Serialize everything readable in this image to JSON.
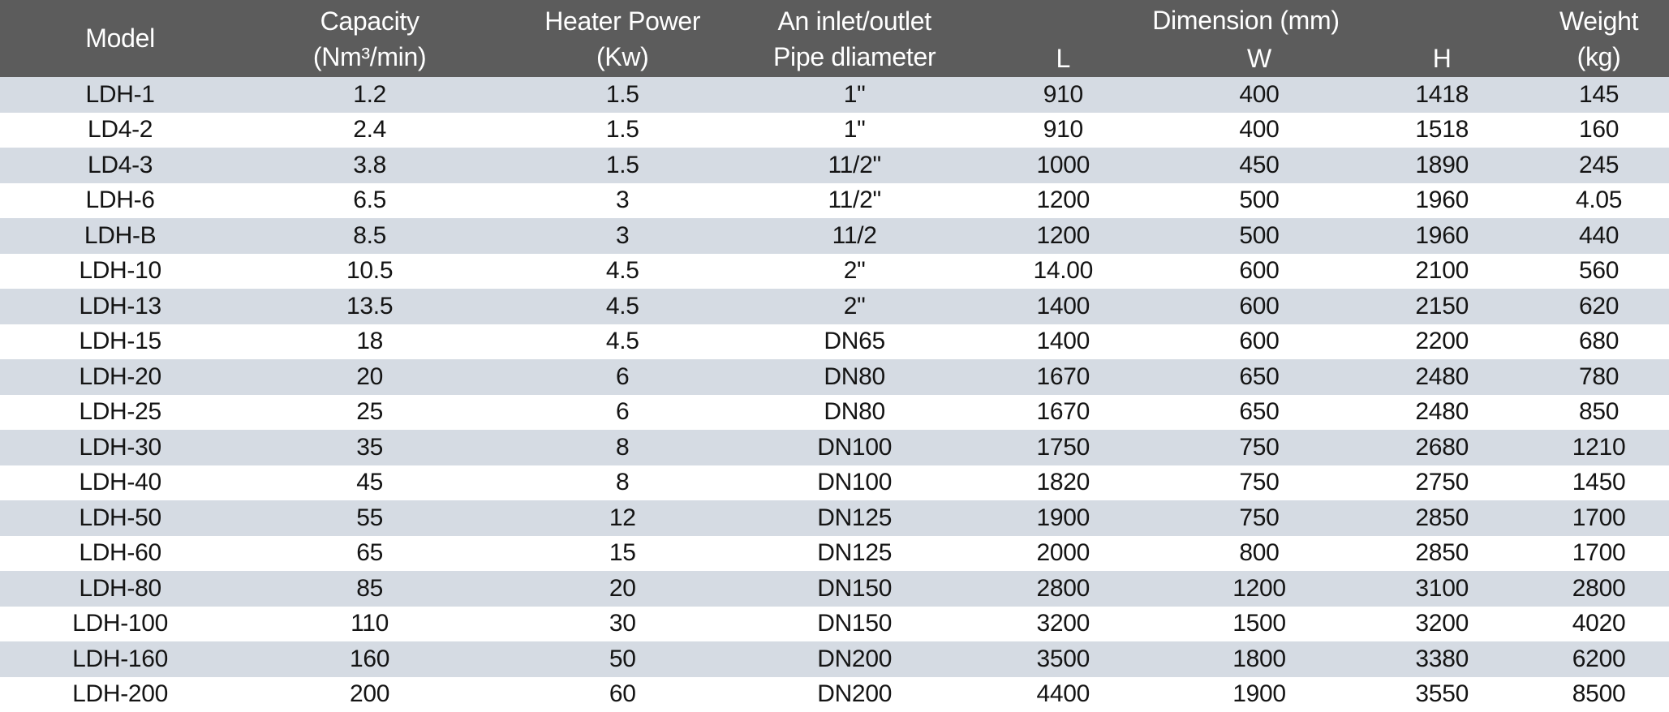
{
  "colors": {
    "header_bg": "#5c5c5c",
    "header_text": "#ffffff",
    "stripe_bg": "#d5dbe3",
    "row_bg": "#ffffff",
    "text_color": "#141414"
  },
  "table": {
    "header": {
      "model": "Model",
      "capacity_line1": "Capacity",
      "capacity_line2": "(Nm³/min)",
      "heater_line1": "Heater Power",
      "heater_line2": "(Kw)",
      "pipe_line1": "An inlet/outlet",
      "pipe_line2": "Pipe dliameter",
      "dimension": "Dimension (mm)",
      "dim_l": "L",
      "dim_w": "W",
      "dim_h": "H",
      "weight_line1": "Weight",
      "weight_line2": "(kg)"
    }
  },
  "chart_data": {
    "type": "table",
    "title": "",
    "columns": [
      "Model",
      "Capacity (Nm³/min)",
      "Heater Power (Kw)",
      "An inlet/outlet Pipe dliameter",
      "Dimension (mm) L",
      "Dimension (mm) W",
      "Dimension (mm) H",
      "Weight (kg)"
    ],
    "rows": [
      [
        "LDH-1",
        "1.2",
        "1.5",
        "1\"",
        "910",
        "400",
        "1418",
        "145"
      ],
      [
        "LD4-2",
        "2.4",
        "1.5",
        "1\"",
        "910",
        "400",
        "1518",
        "160"
      ],
      [
        "LD4-3",
        "3.8",
        "1.5",
        "11/2\"",
        "1000",
        "450",
        "1890",
        "245"
      ],
      [
        "LDH-6",
        "6.5",
        "3",
        "11/2\"",
        "1200",
        "500",
        "1960",
        "4.05"
      ],
      [
        "LDH-B",
        "8.5",
        "3",
        "11/2",
        "1200",
        "500",
        "1960",
        "440"
      ],
      [
        "LDH-10",
        "10.5",
        "4.5",
        "2\"",
        "14.00",
        "600",
        "2100",
        "560"
      ],
      [
        "LDH-13",
        "13.5",
        "4.5",
        "2\"",
        "1400",
        "600",
        "2150",
        "620"
      ],
      [
        "LDH-15",
        "18",
        "4.5",
        "DN65",
        "1400",
        "600",
        "2200",
        "680"
      ],
      [
        "LDH-20",
        "20",
        "6",
        "DN80",
        "1670",
        "650",
        "2480",
        "780"
      ],
      [
        "LDH-25",
        "25",
        "6",
        "DN80",
        "1670",
        "650",
        "2480",
        "850"
      ],
      [
        "LDH-30",
        "35",
        "8",
        "DN100",
        "1750",
        "750",
        "2680",
        "1210"
      ],
      [
        "LDH-40",
        "45",
        "8",
        "DN100",
        "1820",
        "750",
        "2750",
        "1450"
      ],
      [
        "LDH-50",
        "55",
        "12",
        "DN125",
        "1900",
        "750",
        "2850",
        "1700"
      ],
      [
        "LDH-60",
        "65",
        "15",
        "DN125",
        "2000",
        "800",
        "2850",
        "1700"
      ],
      [
        "LDH-80",
        "85",
        "20",
        "DN150",
        "2800",
        "1200",
        "3100",
        "2800"
      ],
      [
        "LDH-100",
        "110",
        "30",
        "DN150",
        "3200",
        "1500",
        "3200",
        "4020"
      ],
      [
        "LDH-160",
        "160",
        "50",
        "DN200",
        "3500",
        "1800",
        "3380",
        "6200"
      ],
      [
        "LDH-200",
        "200",
        "60",
        "DN200",
        "4400",
        "1900",
        "3550",
        "8500"
      ]
    ]
  }
}
